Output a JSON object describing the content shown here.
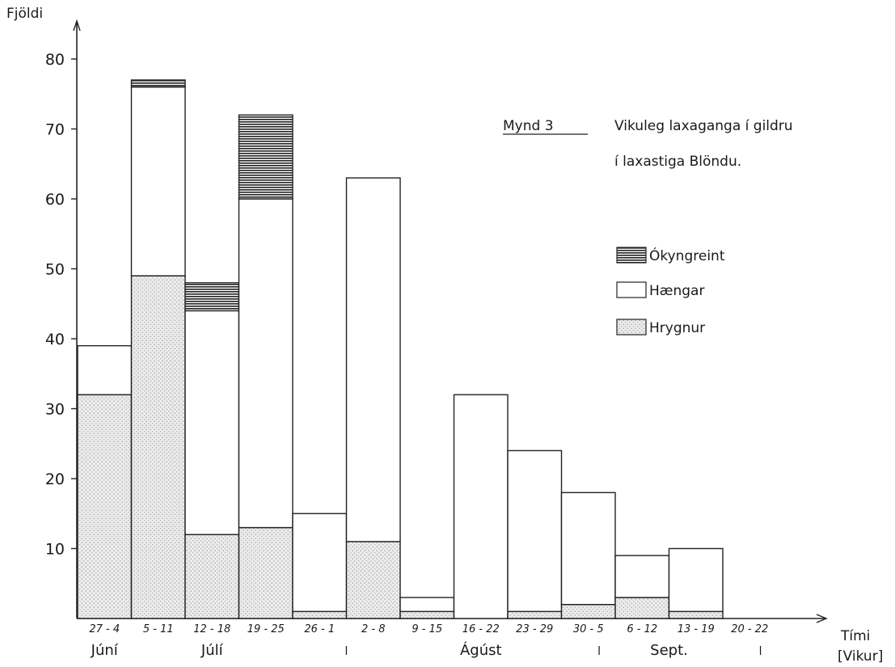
{
  "chart_data": {
    "type": "bar",
    "stacked": true,
    "title_prefix": "Mynd 3",
    "title_line1": "Vikuleg laxaganga í gildru",
    "title_line2": "í laxastiga Blöndu.",
    "ylabel": "Fjöldi",
    "xlabel": "Tími",
    "xunit": "[Vikur]",
    "ylim": [
      0,
      85
    ],
    "yticks": [
      10,
      20,
      30,
      40,
      50,
      60,
      70,
      80
    ],
    "categories": [
      "27 - 4",
      "5 - 11",
      "12 - 18",
      "19 - 25",
      "26 - 1",
      "2 - 8",
      "9 - 15",
      "16 - 22",
      "23 - 29",
      "30 - 5",
      "6 - 12",
      "13 - 19",
      "20 - 22"
    ],
    "month_labels": [
      {
        "text": "Júní",
        "at": 0
      },
      {
        "text": "Júlí",
        "at": 2
      },
      {
        "text": "l",
        "at": 4.5
      },
      {
        "text": "Ágúst",
        "at": 7
      },
      {
        "text": "l",
        "at": 9.2
      },
      {
        "text": "Sept.",
        "at": 10.5
      },
      {
        "text": "l",
        "at": 12.2
      }
    ],
    "series": [
      {
        "name": "Hrygnur",
        "values": [
          32,
          49,
          12,
          13,
          1,
          11,
          1,
          0,
          1,
          2,
          3,
          1,
          0
        ]
      },
      {
        "name": "Hængar",
        "values": [
          7,
          27,
          32,
          47,
          14,
          52,
          2,
          32,
          23,
          16,
          6,
          9,
          0
        ]
      },
      {
        "name": "Ókyngreint",
        "values": [
          0,
          1,
          4,
          12,
          0,
          0,
          0,
          0,
          0,
          0,
          0,
          0,
          0
        ]
      }
    ],
    "legend": [
      "Ókyngreint",
      "Hængar",
      "Hrygnur"
    ],
    "legend_position": "right",
    "grid": false
  }
}
